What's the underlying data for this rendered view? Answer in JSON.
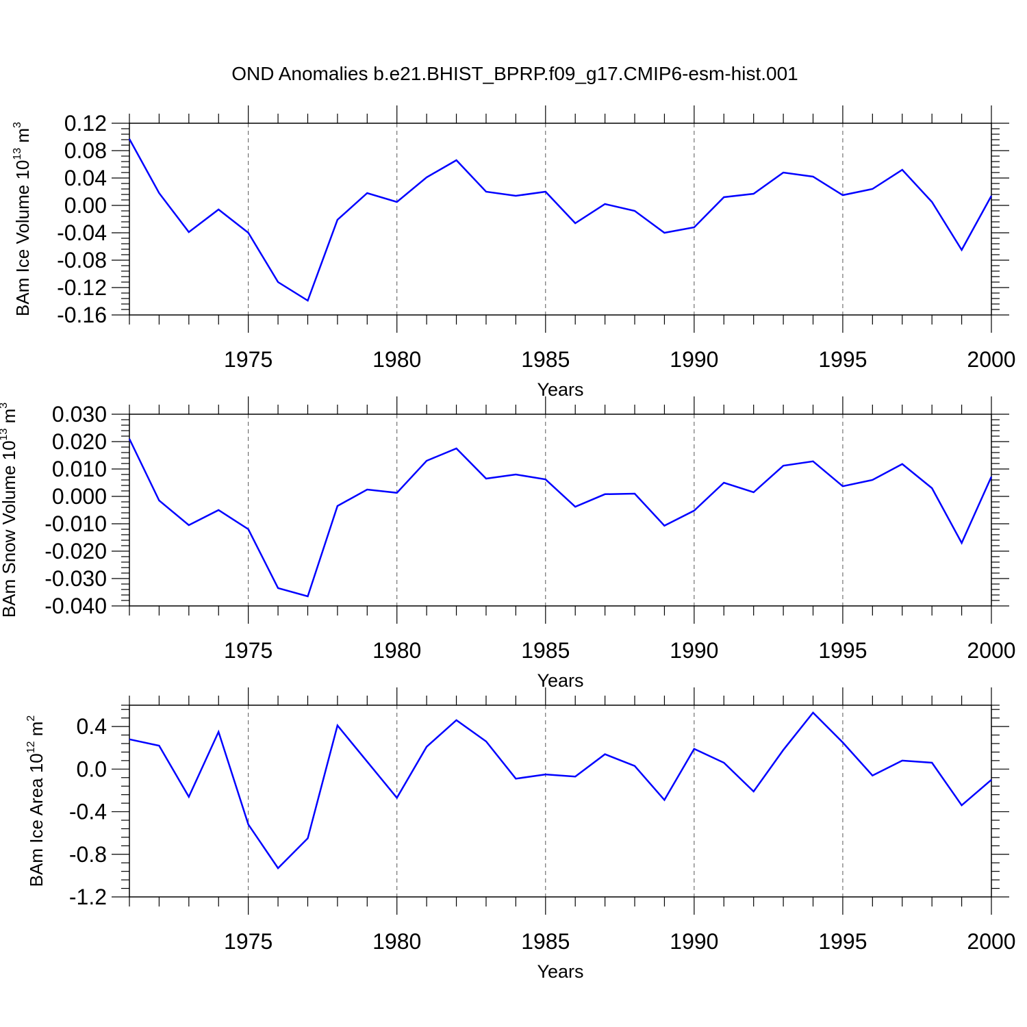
{
  "title": "OND Anomalies b.e21.BHIST_BPRP.f09_g17.CMIP6-esm-hist.001",
  "line_color": "#0000ff",
  "chart_data": [
    {
      "type": "line",
      "xlabel": "Years",
      "ylabel": {
        "prefix": "BAm Ice Volume 10",
        "exp": "13",
        "suffix": " m",
        "unit_exp": "3"
      },
      "xlim": [
        1971,
        2000
      ],
      "ylim": [
        -0.16,
        0.12
      ],
      "xticks": [
        1975,
        1980,
        1985,
        1990,
        1995,
        2000
      ],
      "yticks": [
        -0.16,
        -0.12,
        -0.08,
        -0.04,
        0.0,
        0.04,
        0.08,
        0.12
      ],
      "ytick_labels": [
        "-0.16",
        "-0.12",
        "-0.08",
        "-0.04",
        "0.00",
        "0.04",
        "0.08",
        "0.12"
      ],
      "x": [
        1971,
        1972,
        1973,
        1974,
        1975,
        1976,
        1977,
        1978,
        1979,
        1980,
        1981,
        1982,
        1983,
        1984,
        1985,
        1986,
        1987,
        1988,
        1989,
        1990,
        1991,
        1992,
        1993,
        1994,
        1995,
        1996,
        1997,
        1998,
        1999,
        2000
      ],
      "values": [
        0.097,
        0.018,
        -0.039,
        -0.006,
        -0.04,
        -0.112,
        -0.139,
        -0.021,
        0.018,
        0.005,
        0.041,
        0.066,
        0.02,
        0.014,
        0.02,
        -0.026,
        0.002,
        -0.008,
        -0.04,
        -0.032,
        0.012,
        0.017,
        0.048,
        0.042,
        0.015,
        0.024,
        0.052,
        0.005,
        -0.065,
        0.014
      ]
    },
    {
      "type": "line",
      "xlabel": "Years",
      "ylabel": {
        "prefix": "BAm Snow Volume 10",
        "exp": "13",
        "suffix": " m",
        "unit_exp": "3"
      },
      "xlim": [
        1971,
        2000
      ],
      "ylim": [
        -0.04,
        0.03
      ],
      "xticks": [
        1975,
        1980,
        1985,
        1990,
        1995,
        2000
      ],
      "yticks": [
        -0.04,
        -0.03,
        -0.02,
        -0.01,
        0.0,
        0.01,
        0.02,
        0.03
      ],
      "ytick_labels": [
        "-0.040",
        "-0.030",
        "-0.020",
        "-0.010",
        "0.000",
        "0.010",
        "0.020",
        "0.030"
      ],
      "x": [
        1971,
        1972,
        1973,
        1974,
        1975,
        1976,
        1977,
        1978,
        1979,
        1980,
        1981,
        1982,
        1983,
        1984,
        1985,
        1986,
        1987,
        1988,
        1989,
        1990,
        1991,
        1992,
        1993,
        1994,
        1995,
        1996,
        1997,
        1998,
        1999,
        2000
      ],
      "values": [
        0.021,
        -0.0015,
        -0.0105,
        -0.005,
        -0.012,
        -0.0335,
        -0.0365,
        -0.0035,
        0.0025,
        0.0013,
        0.013,
        0.0175,
        0.0065,
        0.008,
        0.0062,
        -0.0038,
        0.0008,
        0.001,
        -0.0107,
        -0.0052,
        0.005,
        0.0015,
        0.0112,
        0.0128,
        0.0037,
        0.006,
        0.0118,
        0.003,
        -0.017,
        0.0072
      ]
    },
    {
      "type": "line",
      "xlabel": "Years",
      "ylabel": {
        "prefix": "BAm Ice Area 10",
        "exp": "12",
        "suffix": " m",
        "unit_exp": "2"
      },
      "xlim": [
        1971,
        2000
      ],
      "ylim": [
        -1.2,
        0.6
      ],
      "xticks": [
        1975,
        1980,
        1985,
        1990,
        1995,
        2000
      ],
      "yticks": [
        -1.2,
        -0.8,
        -0.4,
        0.0,
        0.4
      ],
      "ytick_labels": [
        "-1.2",
        "-0.8",
        "-0.4",
        "0.0",
        "0.4"
      ],
      "x": [
        1971,
        1972,
        1973,
        1974,
        1975,
        1976,
        1977,
        1978,
        1979,
        1980,
        1981,
        1982,
        1983,
        1984,
        1985,
        1986,
        1987,
        1988,
        1989,
        1990,
        1991,
        1992,
        1993,
        1994,
        1995,
        1996,
        1997,
        1998,
        1999,
        2000
      ],
      "values": [
        0.28,
        0.22,
        -0.26,
        0.35,
        -0.52,
        -0.93,
        -0.65,
        0.41,
        0.07,
        -0.27,
        0.21,
        0.46,
        0.26,
        -0.09,
        -0.05,
        -0.07,
        0.14,
        0.03,
        -0.29,
        0.19,
        0.06,
        -0.21,
        0.18,
        0.53,
        0.25,
        -0.06,
        0.08,
        0.06,
        -0.34,
        -0.1
      ]
    }
  ]
}
